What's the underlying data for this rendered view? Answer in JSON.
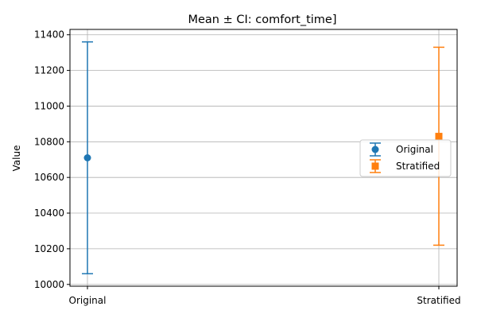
{
  "chart_data": {
    "type": "errorbar",
    "title": "Mean ± CI: comfort_time]",
    "xlabel": "",
    "ylabel": "Value",
    "categories": [
      "Original",
      "Stratified"
    ],
    "ylim": [
      9990,
      11430
    ],
    "yticks": [
      10000,
      10200,
      10400,
      10600,
      10800,
      11000,
      11200,
      11400
    ],
    "grid": true,
    "legend": "center-right",
    "series": [
      {
        "name": "Original",
        "x": "Original",
        "mean": 10710,
        "ci_low": 10060,
        "ci_high": 11360,
        "marker": "circle",
        "color": "#1f77b4"
      },
      {
        "name": "Stratified",
        "x": "Stratified",
        "mean": 10830,
        "ci_low": 10220,
        "ci_high": 11330,
        "marker": "square",
        "color": "#ff7f0e"
      }
    ]
  }
}
